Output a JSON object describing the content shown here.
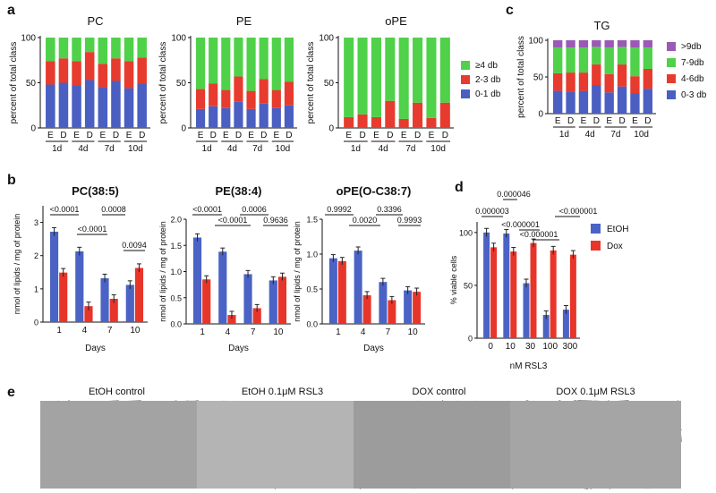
{
  "panel_letters": {
    "a": "a",
    "b": "b",
    "c": "c",
    "d": "d",
    "e": "e"
  },
  "colors": {
    "green": "#4fd14a",
    "red": "#e63b2e",
    "blue": "#4a5fc1",
    "purple": "#9b59b6",
    "bar_red": "#e8352a",
    "bar_blue": "#4a63c4"
  },
  "chart_data": [
    {
      "type": "bar",
      "stacked": true,
      "title": "PC",
      "ylabel": "percent of total class",
      "ylim": [
        0,
        100
      ],
      "yticks": [
        "0",
        "50",
        "100"
      ],
      "categories": [
        "E",
        "D",
        "E",
        "D",
        "E",
        "D",
        "E",
        "D"
      ],
      "groups": [
        "1d",
        "4d",
        "7d",
        "10d"
      ],
      "series": [
        {
          "name": "0-1 db",
          "values": [
            48,
            50,
            47,
            53,
            45,
            52,
            44,
            49
          ]
        },
        {
          "name": "2-3 db",
          "values": [
            26,
            27,
            27,
            31,
            26,
            25,
            30,
            29
          ]
        },
        {
          "name": "≥4 db",
          "values": [
            26,
            23,
            26,
            16,
            29,
            23,
            26,
            22
          ]
        }
      ]
    },
    {
      "type": "bar",
      "stacked": true,
      "title": "PE",
      "ylabel": "percent of total class",
      "ylim": [
        0,
        100
      ],
      "yticks": [
        "0",
        "50",
        "100"
      ],
      "categories": [
        "E",
        "D",
        "E",
        "D",
        "E",
        "D",
        "E",
        "D"
      ],
      "groups": [
        "1d",
        "4d",
        "7d",
        "10d"
      ],
      "series": [
        {
          "name": "0-1 db",
          "values": [
            21,
            24,
            22,
            29,
            21,
            27,
            22,
            25
          ]
        },
        {
          "name": "2-3 db",
          "values": [
            22,
            25,
            20,
            28,
            20,
            27,
            20,
            26
          ]
        },
        {
          "name": "≥4 db",
          "values": [
            57,
            51,
            58,
            43,
            59,
            46,
            58,
            49
          ]
        }
      ]
    },
    {
      "type": "bar",
      "stacked": true,
      "title": "oPE",
      "ylabel": "percent of total class",
      "ylim": [
        0,
        100
      ],
      "yticks": [
        "0",
        "50",
        "100"
      ],
      "categories": [
        "E",
        "D",
        "E",
        "D",
        "E",
        "D",
        "E",
        "D"
      ],
      "groups": [
        "1d",
        "4d",
        "7d",
        "10d"
      ],
      "series": [
        {
          "name": "0-1 db",
          "values": [
            0,
            0,
            0,
            0,
            0,
            0,
            0,
            0
          ]
        },
        {
          "name": "2-3 db",
          "values": [
            12,
            15,
            12,
            30,
            10,
            28,
            11,
            28
          ]
        },
        {
          "name": "≥4 db",
          "values": [
            88,
            85,
            88,
            70,
            90,
            72,
            89,
            72
          ]
        }
      ]
    },
    {
      "type": "bar",
      "stacked": true,
      "title": "TG",
      "ylabel": "percent of total class",
      "ylim": [
        0,
        100
      ],
      "yticks": [
        "0",
        "50",
        "100"
      ],
      "categories": [
        "E",
        "D",
        "E",
        "D",
        "E",
        "D",
        "E",
        "D"
      ],
      "groups": [
        "1d",
        "4d",
        "7d",
        "10d"
      ],
      "series": [
        {
          "name": "0-3 db",
          "values": [
            31,
            30,
            31,
            39,
            29,
            37,
            28,
            34
          ]
        },
        {
          "name": "4-6db",
          "values": [
            24,
            26,
            25,
            28,
            25,
            30,
            23,
            27
          ]
        },
        {
          "name": "7-9db",
          "values": [
            35,
            34,
            34,
            24,
            36,
            24,
            39,
            29
          ]
        },
        {
          "name": ">9db",
          "values": [
            10,
            10,
            10,
            9,
            10,
            9,
            10,
            10
          ]
        }
      ]
    },
    {
      "type": "bar",
      "title": "PC(38:5)",
      "ylabel": "nmol of lipids / mg of protein",
      "xlabel": "Days",
      "ylim": [
        0,
        3.5
      ],
      "yticks": [
        "0",
        "1",
        "2",
        "3"
      ],
      "categories": [
        "1",
        "4",
        "7",
        "10"
      ],
      "series": [
        {
          "name": "EtOH",
          "values": [
            2.72,
            2.13,
            1.32,
            1.12
          ]
        },
        {
          "name": "Dox",
          "values": [
            1.49,
            0.48,
            0.7,
            1.63
          ]
        }
      ],
      "annotations": [
        "<0.0001",
        "<0.0001",
        "0.0008",
        "0.0094"
      ]
    },
    {
      "type": "bar",
      "title": "PE(38:4)",
      "ylabel": "nmol of lipids / mg of protein",
      "xlabel": "Days",
      "ylim": [
        0,
        2.0
      ],
      "yticks": [
        "0.0",
        "0.5",
        "1.0",
        "1.5",
        "2.0"
      ],
      "categories": [
        "1",
        "4",
        "7",
        "10"
      ],
      "series": [
        {
          "name": "EtOH",
          "values": [
            1.65,
            1.38,
            0.95,
            0.83
          ]
        },
        {
          "name": "Dox",
          "values": [
            0.85,
            0.17,
            0.3,
            0.9
          ]
        }
      ],
      "annotations": [
        "<0.0001",
        "<0.0001",
        "0.0006",
        "0.9636"
      ]
    },
    {
      "type": "bar",
      "title": "oPE(O-C38:7)",
      "ylabel": "nmol of lipids / mg of protein",
      "xlabel": "Days",
      "ylim": [
        0,
        1.5
      ],
      "yticks": [
        "0.0",
        "0.5",
        "1.0",
        "1.5"
      ],
      "categories": [
        "1",
        "4",
        "7",
        "10"
      ],
      "series": [
        {
          "name": "EtOH",
          "values": [
            0.94,
            1.05,
            0.6,
            0.48
          ]
        },
        {
          "name": "Dox",
          "values": [
            0.9,
            0.41,
            0.34,
            0.46
          ]
        }
      ],
      "annotations": [
        "0.9992",
        "0.0020",
        "0.3396",
        "0.9993"
      ]
    },
    {
      "type": "bar",
      "ylabel": "% viable cells",
      "xlabel": "nM RSL3",
      "ylim": [
        0,
        110
      ],
      "yticks": [
        "0",
        "50",
        "100"
      ],
      "categories": [
        "0",
        "10",
        "30",
        "100",
        "300"
      ],
      "series": [
        {
          "name": "EtOH",
          "values": [
            100,
            99,
            52,
            22,
            27
          ]
        },
        {
          "name": "Dox",
          "values": [
            86,
            82,
            90,
            83,
            79
          ]
        }
      ],
      "annotations": [
        "0.000046",
        "0.000003",
        "<0.000001",
        "<0.000001",
        "<0.000001"
      ]
    }
  ],
  "micrographs": [
    {
      "title": "EtOH control"
    },
    {
      "title": "EtOH 0.1μM RSL3"
    },
    {
      "title": "DOX control"
    },
    {
      "title": "DOX 0.1μM RSL3"
    }
  ]
}
